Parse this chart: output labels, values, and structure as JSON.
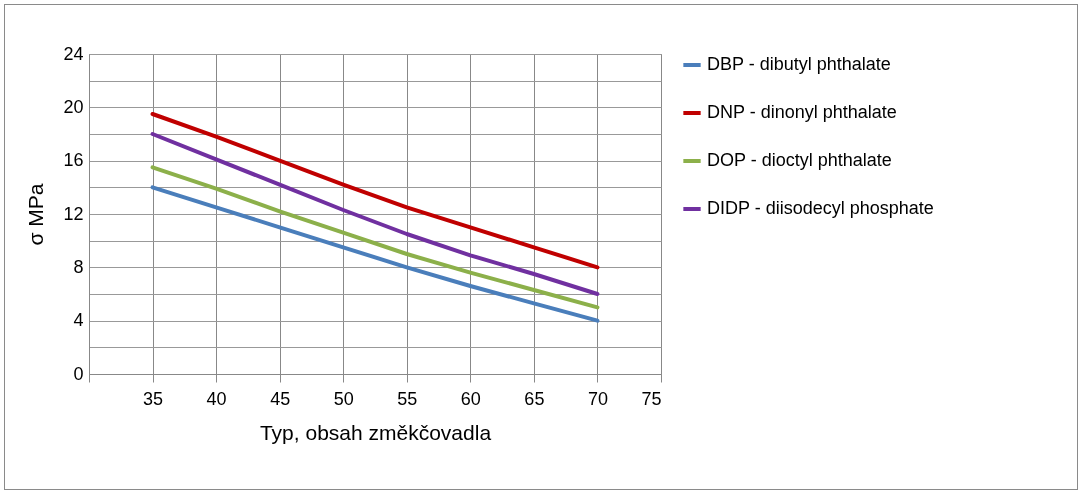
{
  "chart_data": {
    "type": "line",
    "xlabel": "Typ, obsah  změkčovadla",
    "ylabel": "σ   MPa",
    "x": [
      35,
      40,
      45,
      50,
      55,
      60,
      65,
      70
    ],
    "series": [
      {
        "name": "DBP - dibutyl phthalate",
        "color": "#4a7ebb",
        "values": [
          14,
          12.5,
          11,
          9.5,
          8,
          6.6,
          5.3,
          4
        ]
      },
      {
        "name": "DNP - dinonyl phthalate",
        "color": "#c00000",
        "values": [
          19.5,
          17.8,
          16,
          14.2,
          12.5,
          11,
          9.5,
          8
        ]
      },
      {
        "name": "DOP - dioctyl phthalate",
        "color": "#8cb04a",
        "values": [
          15.5,
          13.9,
          12.2,
          10.6,
          9,
          7.6,
          6.3,
          5
        ]
      },
      {
        "name": " DIDP - diisodecyl phosphate",
        "color": "#7030a0",
        "values": [
          18,
          16.1,
          14.2,
          12.3,
          10.5,
          8.9,
          7.5,
          6
        ]
      }
    ],
    "xlim": [
      30,
      75
    ],
    "xticks": [
      {
        "value": 30,
        "label": null
      },
      35,
      40,
      45,
      50,
      55,
      60,
      65,
      70,
      75
    ],
    "ylim": [
      0,
      24
    ],
    "yticks": [
      0,
      {
        "value": 2,
        "label": null
      },
      4,
      {
        "value": 6,
        "label": null
      },
      8,
      {
        "value": 10,
        "label": null
      },
      12,
      {
        "value": 14,
        "label": null
      },
      16,
      {
        "value": 18,
        "label": null
      },
      20,
      {
        "value": 22,
        "label": null
      },
      24
    ],
    "grid": true,
    "legend": "right",
    "marker": "none",
    "line_style": "solid"
  }
}
